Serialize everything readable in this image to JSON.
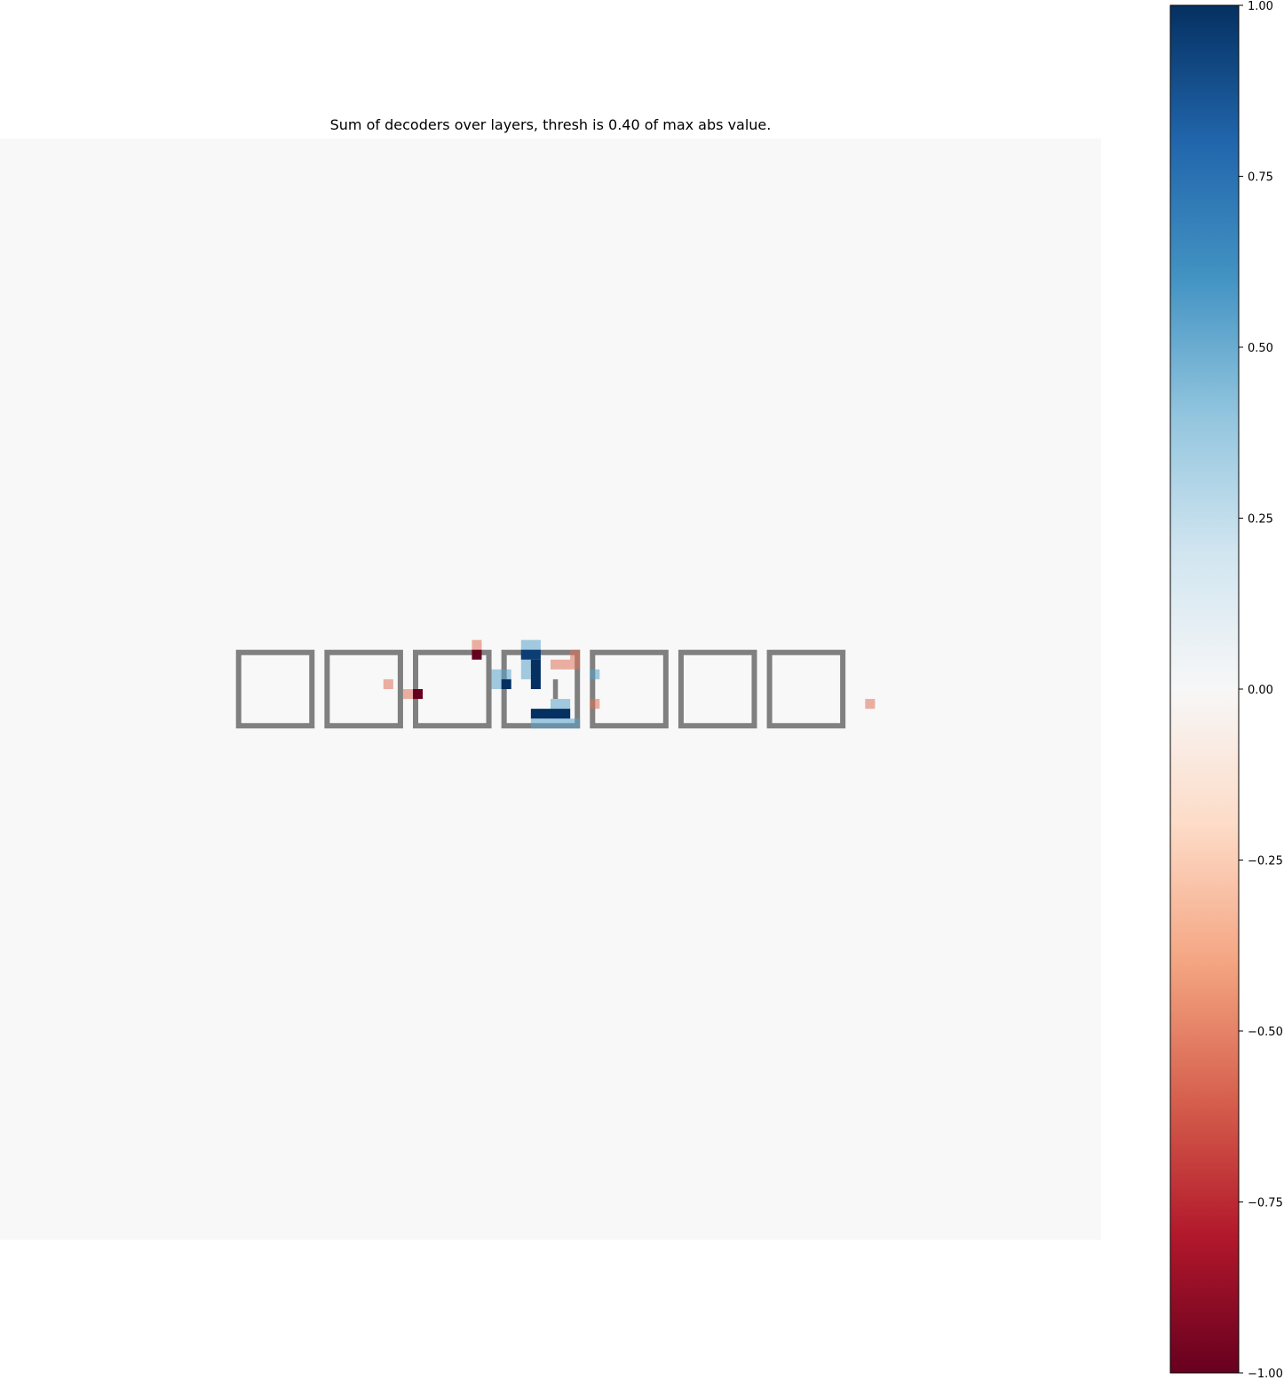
{
  "chart_data": {
    "type": "heatmap",
    "title": "Sum of decoders over layers, thresh is 0.40 of max abs value.",
    "grid": false,
    "colormap": "RdBu",
    "colorbar": {
      "position": "right",
      "range": [
        -1.0,
        1.0
      ],
      "ticks": [
        1.0,
        0.75,
        0.5,
        0.25,
        0.0,
        -0.25,
        -0.5,
        -0.75,
        -1.0
      ],
      "tick_labels": [
        "1.00",
        "0.75",
        "0.50",
        "0.25",
        "0.00",
        "−0.25",
        "−0.50",
        "−0.75",
        "−1.00"
      ],
      "colors": [
        "#67001f",
        "#b2182b",
        "#d6604d",
        "#f4a582",
        "#fddbc7",
        "#f7f7f7",
        "#d1e5f0",
        "#92c5de",
        "#4393c3",
        "#2166ac",
        "#053061"
      ]
    },
    "background_color": "#f8f8f8",
    "grid_size": [
      112,
      112
    ],
    "boxes": {
      "count": 7,
      "color": "#808080",
      "cells": [
        {
          "col": 24,
          "row": 52,
          "size": 8
        },
        {
          "col": 33,
          "row": 52,
          "size": 8
        },
        {
          "col": 42,
          "row": 52,
          "size": 8
        },
        {
          "col": 51,
          "row": 52,
          "size": 8
        },
        {
          "col": 60,
          "row": 52,
          "size": 8
        },
        {
          "col": 69,
          "row": 52,
          "size": 8
        },
        {
          "col": 78,
          "row": 52,
          "size": 8
        }
      ],
      "inner_marks": [
        {
          "col": 56,
          "row": 55,
          "w": 1,
          "h": 2
        }
      ]
    },
    "cells": [
      {
        "col": 48,
        "row": 51,
        "w": 1,
        "h": 1,
        "value": -0.55
      },
      {
        "col": 48,
        "row": 52,
        "w": 1,
        "h": 1,
        "value": -1.0
      },
      {
        "col": 53,
        "row": 51,
        "w": 2,
        "h": 2,
        "value": 0.55
      },
      {
        "col": 53,
        "row": 52,
        "w": 2,
        "h": 1,
        "value": 0.95
      },
      {
        "col": 53,
        "row": 53,
        "w": 1,
        "h": 1,
        "value": 0.55
      },
      {
        "col": 54,
        "row": 53,
        "w": 1,
        "h": 3,
        "value": 1.0
      },
      {
        "col": 53,
        "row": 54,
        "w": 1,
        "h": 1,
        "value": 0.55
      },
      {
        "col": 50,
        "row": 54,
        "w": 1,
        "h": 1,
        "value": 0.55
      },
      {
        "col": 51,
        "row": 54,
        "w": 1,
        "h": 2,
        "value": 0.55
      },
      {
        "col": 51,
        "row": 55,
        "w": 1,
        "h": 1,
        "value": 1.0
      },
      {
        "col": 50,
        "row": 55,
        "w": 1,
        "h": 1,
        "value": 0.55
      },
      {
        "col": 56,
        "row": 53,
        "w": 1,
        "h": 1,
        "value": -0.55
      },
      {
        "col": 57,
        "row": 53,
        "w": 1,
        "h": 1,
        "value": -0.55
      },
      {
        "col": 58,
        "row": 52,
        "w": 1,
        "h": 2,
        "value": -0.55
      },
      {
        "col": 60,
        "row": 54,
        "w": 1,
        "h": 1,
        "value": 0.55
      },
      {
        "col": 56,
        "row": 57,
        "w": 2,
        "h": 2,
        "value": 0.55
      },
      {
        "col": 54,
        "row": 58,
        "w": 4,
        "h": 1,
        "value": 1.0
      },
      {
        "col": 54,
        "row": 59,
        "w": 4,
        "h": 1,
        "value": 0.55
      },
      {
        "col": 58,
        "row": 59,
        "w": 1,
        "h": 1,
        "value": 0.55
      },
      {
        "col": 60,
        "row": 57,
        "w": 1,
        "h": 1,
        "value": -0.55
      },
      {
        "col": 39,
        "row": 55,
        "w": 1,
        "h": 1,
        "value": -0.55
      },
      {
        "col": 41,
        "row": 56,
        "w": 1,
        "h": 1,
        "value": -0.55
      },
      {
        "col": 42,
        "row": 56,
        "w": 1,
        "h": 1,
        "value": -1.0
      },
      {
        "col": 88,
        "row": 57,
        "w": 1,
        "h": 1,
        "value": -0.55
      }
    ]
  }
}
